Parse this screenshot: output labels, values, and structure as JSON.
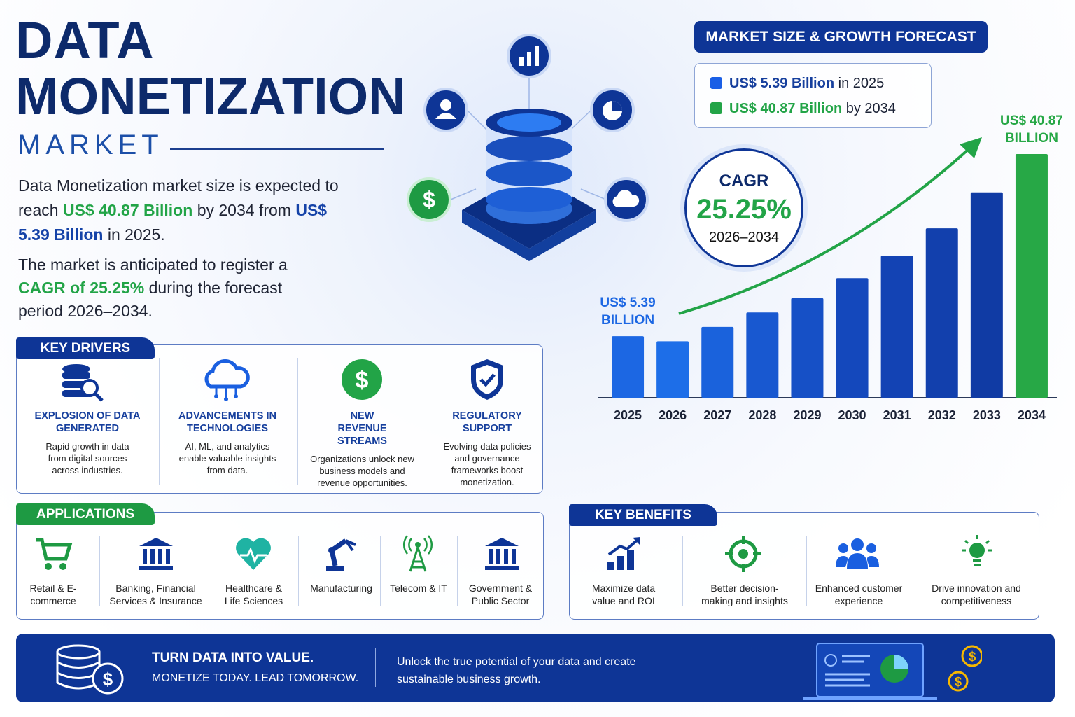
{
  "header": {
    "title_line1": "DATA",
    "title_line2": "MONETIZATION",
    "subtitle": "MARKET"
  },
  "intro": {
    "p1": [
      "Data Monetization market size is expected to reach",
      "US$ 40.87 Billion",
      "by 2034 from",
      "US$ 5.39 Billion",
      "in 2025."
    ],
    "p2": [
      "The market is anticipated to register a",
      "CAGR of 25.25%",
      "during the forecast period 2026–2034."
    ]
  },
  "key_drivers": {
    "heading": "KEY DRIVERS",
    "items": [
      {
        "title": "EXPLOSION OF DATA GENERATED",
        "text": "Rapid growth in data from digital sources across industries."
      },
      {
        "title": "ADVANCEMENTS IN TECHNOLOGIES",
        "text": "AI, ML, and analytics enable valuable insights from data."
      },
      {
        "title": "NEW REVENUE STREAMS",
        "text": "Organizations unlock new business models and revenue opportunities."
      },
      {
        "title": "REGULATORY SUPPORT",
        "text": "Evolving data policies and governance frameworks boost monetization."
      }
    ]
  },
  "applications": {
    "heading": "APPLICATIONS",
    "items": [
      "Retail & E-commerce",
      "Banking, Financial Services & Insurance",
      "Healthcare & Life Sciences",
      "Manufacturing",
      "Telecom & IT",
      "Government & Public Sector"
    ]
  },
  "key_benefits": {
    "heading": "KEY BENEFITS",
    "items": [
      "Maximize data value and ROI",
      "Better decision-making and insights",
      "Enhanced customer experience",
      "Drive innovation and competitiveness"
    ]
  },
  "footer": {
    "headline": "TURN DATA INTO VALUE.",
    "tagline": "MONETIZE TODAY. LEAD TOMORROW.",
    "text": "Unlock the true potential of your data and create sustainable business growth."
  },
  "chart_data": {
    "type": "bar",
    "title": "MARKET SIZE & GROWTH FORECAST",
    "categories": [
      "2025",
      "2026",
      "2027",
      "2028",
      "2029",
      "2030",
      "2031",
      "2032",
      "2033",
      "2034"
    ],
    "values": [
      5.39,
      4.4,
      7.2,
      10.0,
      12.8,
      16.7,
      21.1,
      26.4,
      33.4,
      40.87
    ],
    "value_labels": [
      "US$ 5.39 BILLION",
      null,
      null,
      null,
      null,
      null,
      null,
      null,
      null,
      "US$ 40.87 BILLION"
    ],
    "colors": [
      "#1c67e3",
      "#1d6ee8",
      "#1a62dc",
      "#1858d0",
      "#1650c6",
      "#1448bc",
      "#1343b4",
      "#1240ad",
      "#103ba4",
      "#27a846"
    ],
    "ylim": [
      -6.6,
      43.6
    ],
    "legend": [
      {
        "value": "US$ 5.39 Billion",
        "text": "in 2025",
        "color": "#1a5fe6"
      },
      {
        "value": "US$ 40.87 Billion",
        "text": "by 2034",
        "color": "#22a447"
      }
    ],
    "cagr": {
      "label": "CAGR",
      "value": "25.25%",
      "period": "2026–2034"
    }
  }
}
